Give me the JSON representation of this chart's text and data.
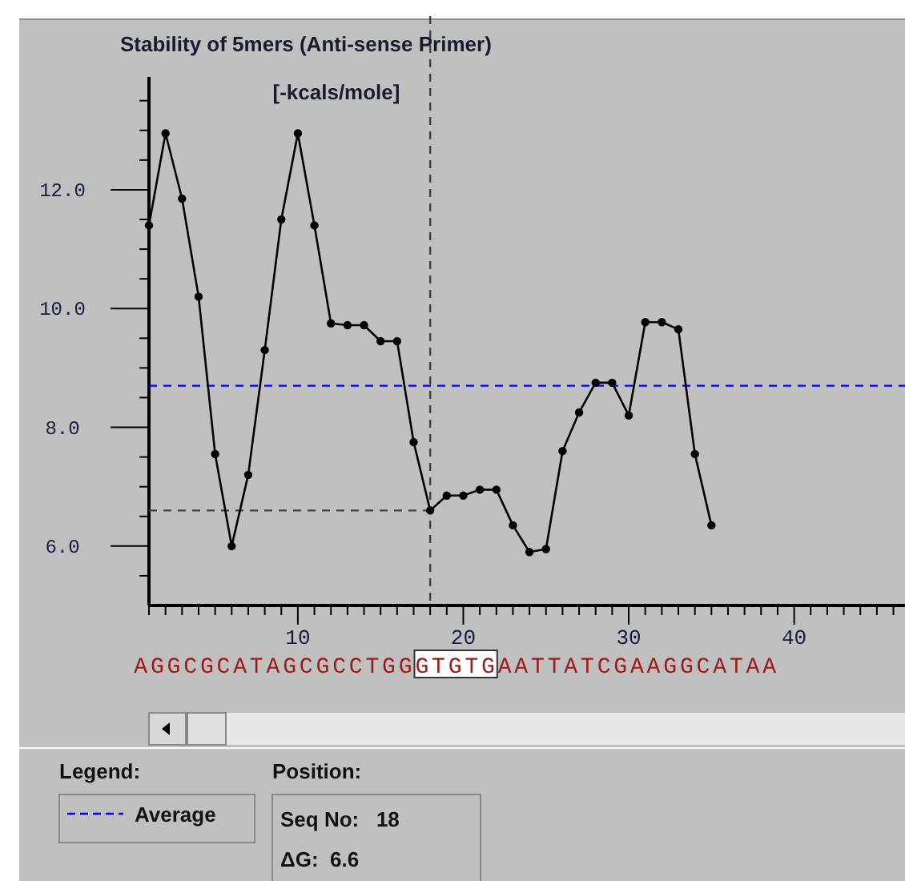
{
  "chart_data": {
    "type": "line",
    "title": "Stability of 5mers (Anti-sense Primer)",
    "ylabel": "[-kcals/mole]",
    "x": [
      1,
      2,
      3,
      4,
      5,
      6,
      7,
      8,
      9,
      10,
      11,
      12,
      13,
      14,
      15,
      16,
      17,
      18,
      19,
      20,
      21,
      22,
      23,
      24,
      25,
      26,
      27,
      28,
      29,
      30,
      31,
      32,
      33,
      34,
      35
    ],
    "series": [
      {
        "color": "#000000",
        "values": [
          11.4,
          12.95,
          11.85,
          10.2,
          7.55,
          6.0,
          7.2,
          9.3,
          11.5,
          12.95,
          11.4,
          9.75,
          9.72,
          9.72,
          9.45,
          9.45,
          7.75,
          6.6,
          6.85,
          6.85,
          6.95,
          6.95,
          6.35,
          5.9,
          5.95,
          7.6,
          8.25,
          8.75,
          8.75,
          8.2,
          9.77,
          9.77,
          9.65,
          7.55,
          6.35
        ]
      }
    ],
    "xlim": [
      1,
      46.7
    ],
    "ylim": [
      5.0,
      13.9
    ],
    "xticks": [
      {
        "value": 1,
        "label": null
      },
      {
        "value": 2,
        "label": null
      },
      {
        "value": 3,
        "label": null
      },
      {
        "value": 4,
        "label": null
      },
      {
        "value": 5,
        "label": null
      },
      {
        "value": 6,
        "label": null
      },
      {
        "value": 7,
        "label": null
      },
      {
        "value": 8,
        "label": null
      },
      {
        "value": 9,
        "label": null
      },
      10,
      {
        "value": 11,
        "label": null
      },
      {
        "value": 12,
        "label": null
      },
      {
        "value": 13,
        "label": null
      },
      {
        "value": 14,
        "label": null
      },
      {
        "value": 15,
        "label": null
      },
      {
        "value": 16,
        "label": null
      },
      {
        "value": 17,
        "label": null
      },
      {
        "value": 18,
        "label": null
      },
      {
        "value": 19,
        "label": null
      },
      20,
      {
        "value": 21,
        "label": null
      },
      {
        "value": 22,
        "label": null
      },
      {
        "value": 23,
        "label": null
      },
      {
        "value": 24,
        "label": null
      },
      {
        "value": 25,
        "label": null
      },
      {
        "value": 26,
        "label": null
      },
      {
        "value": 27,
        "label": null
      },
      {
        "value": 28,
        "label": null
      },
      {
        "value": 29,
        "label": null
      },
      30,
      {
        "value": 31,
        "label": null
      },
      {
        "value": 32,
        "label": null
      },
      {
        "value": 33,
        "label": null
      },
      {
        "value": 34,
        "label": null
      },
      {
        "value": 35,
        "label": null
      },
      {
        "value": 36,
        "label": null
      },
      {
        "value": 37,
        "label": null
      },
      {
        "value": 38,
        "label": null
      },
      {
        "value": 39,
        "label": null
      },
      40,
      {
        "value": 41,
        "label": null
      },
      {
        "value": 42,
        "label": null
      },
      {
        "value": 43,
        "label": null
      },
      {
        "value": 44,
        "label": null
      },
      {
        "value": 45,
        "label": null
      },
      {
        "value": 46,
        "label": null
      }
    ],
    "yticks": [
      {
        "value": 5.5,
        "label": null
      },
      {
        "value": 6,
        "label": "6.0"
      },
      {
        "value": 6.5,
        "label": null
      },
      {
        "value": 7,
        "label": null
      },
      {
        "value": 7.5,
        "label": null
      },
      {
        "value": 8,
        "label": "8.0"
      },
      {
        "value": 8.5,
        "label": null
      },
      {
        "value": 9,
        "label": null
      },
      {
        "value": 9.5,
        "label": null
      },
      {
        "value": 10,
        "label": "10.0"
      },
      {
        "value": 10.5,
        "label": null
      },
      {
        "value": 11,
        "label": null
      },
      {
        "value": 11.5,
        "label": null
      },
      {
        "value": 12,
        "label": "12.0"
      },
      {
        "value": 12.5,
        "label": null
      },
      {
        "value": 13,
        "label": null
      },
      {
        "value": 13.5,
        "label": null
      }
    ],
    "ref_lines": [
      {
        "axis": "y",
        "value": 8.7,
        "label": "Average",
        "color": "#0000ff",
        "line_style": "dashed"
      },
      {
        "axis": "x",
        "value": 18,
        "color": "#404040",
        "line_style": "dashed"
      },
      {
        "axis": "y",
        "value": 6.6,
        "color": "#404040",
        "line_style": "dashed"
      }
    ],
    "legend": "bottom left",
    "legend_title": "Legend:",
    "marker": "circle",
    "line_style": "solid",
    "grid": false,
    "annotations": [
      "AGGCGCATAGCGCCTGGGTGTGAATTATCGAAGGCATAA",
      "Position:",
      "Seq No:   18",
      "ΔG:  6.6"
    ]
  }
}
